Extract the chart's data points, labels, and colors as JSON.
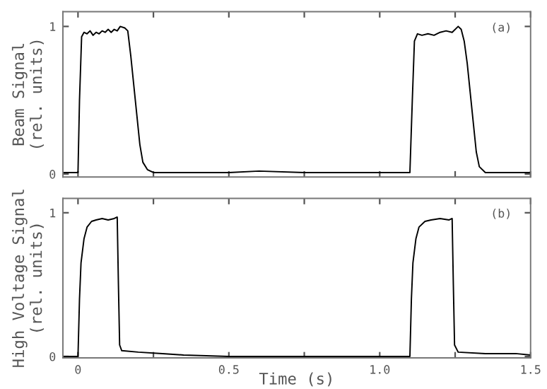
{
  "chart_data": [
    {
      "type": "line",
      "ylabel": "Beam Signal\n(rel. units)",
      "annotations": [
        "(a)"
      ],
      "xlim": [
        -0.05,
        1.5
      ],
      "ylim": [
        -0.02,
        1.1
      ],
      "xticks": [
        {
          "value": 0,
          "label": null
        },
        {
          "value": 0.25,
          "label": null
        },
        {
          "value": 0.5,
          "label": null
        },
        {
          "value": 0.75,
          "label": null
        },
        {
          "value": 1.0,
          "label": null
        },
        {
          "value": 1.25,
          "label": null
        },
        {
          "value": 1.5,
          "label": null
        }
      ],
      "yticks": [
        0,
        1
      ],
      "tick_labels": "y",
      "grid": false,
      "legend": false,
      "marker": "none",
      "line_style": "solid",
      "series": [
        {
          "color": "#000000",
          "x": [
            -0.05,
            0.0,
            0.005,
            0.012,
            0.02,
            0.03,
            0.04,
            0.05,
            0.06,
            0.07,
            0.08,
            0.09,
            0.1,
            0.11,
            0.12,
            0.13,
            0.14,
            0.155,
            0.165,
            0.175,
            0.185,
            0.195,
            0.205,
            0.215,
            0.23,
            0.25,
            0.35,
            0.5,
            0.6,
            0.75,
            0.9,
            1.1,
            1.108,
            1.115,
            1.125,
            1.14,
            1.16,
            1.18,
            1.2,
            1.22,
            1.24,
            1.26,
            1.27,
            1.28,
            1.29,
            1.3,
            1.31,
            1.32,
            1.33,
            1.35,
            1.5
          ],
          "values": [
            0.01,
            0.01,
            0.5,
            0.93,
            0.96,
            0.95,
            0.97,
            0.94,
            0.96,
            0.95,
            0.97,
            0.96,
            0.98,
            0.96,
            0.98,
            0.97,
            1.0,
            0.99,
            0.97,
            0.8,
            0.6,
            0.4,
            0.2,
            0.08,
            0.03,
            0.01,
            0.01,
            0.01,
            0.02,
            0.01,
            0.01,
            0.01,
            0.5,
            0.9,
            0.95,
            0.94,
            0.95,
            0.94,
            0.96,
            0.97,
            0.96,
            1.0,
            0.98,
            0.9,
            0.75,
            0.55,
            0.35,
            0.15,
            0.05,
            0.01,
            0.01
          ]
        }
      ]
    },
    {
      "type": "line",
      "ylabel": "High Voltage Signal\n(rel. units)",
      "xlabel": "Time (s)",
      "annotations": [
        "(b)"
      ],
      "xlim": [
        -0.05,
        1.5
      ],
      "ylim": [
        -0.01,
        1.1
      ],
      "xticks": [
        0,
        {
          "value": 0.25,
          "label": null
        },
        0.5,
        {
          "value": 0.75,
          "label": null
        },
        {
          "value": 1.0,
          "label": "1.0"
        },
        {
          "value": 1.25,
          "label": null
        },
        1.5
      ],
      "yticks": [
        0,
        1
      ],
      "grid": false,
      "legend": false,
      "marker": "none",
      "line_style": "solid",
      "series": [
        {
          "color": "#000000",
          "x": [
            -0.05,
            0.0,
            0.005,
            0.01,
            0.02,
            0.03,
            0.045,
            0.06,
            0.08,
            0.1,
            0.12,
            0.13,
            0.134,
            0.138,
            0.145,
            0.2,
            0.28,
            0.35,
            0.5,
            1.1,
            1.105,
            1.11,
            1.12,
            1.13,
            1.15,
            1.17,
            1.2,
            1.23,
            1.24,
            1.244,
            1.248,
            1.26,
            1.35,
            1.45,
            1.5
          ],
          "values": [
            0.0,
            0.0,
            0.4,
            0.65,
            0.82,
            0.9,
            0.94,
            0.95,
            0.96,
            0.95,
            0.96,
            0.97,
            0.5,
            0.08,
            0.04,
            0.03,
            0.02,
            0.01,
            0.0,
            0.0,
            0.4,
            0.65,
            0.82,
            0.9,
            0.94,
            0.95,
            0.96,
            0.95,
            0.96,
            0.5,
            0.08,
            0.03,
            0.02,
            0.02,
            0.01
          ]
        }
      ]
    }
  ]
}
